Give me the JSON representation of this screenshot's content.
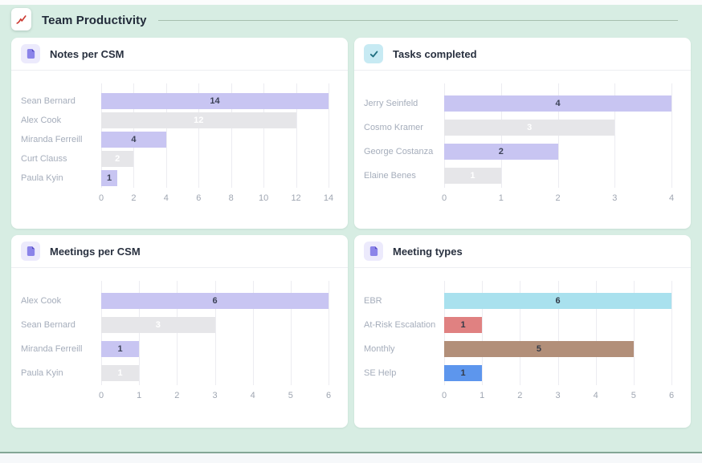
{
  "header": {
    "title": "Team Productivity",
    "icon": "trend-line-icon"
  },
  "colors": {
    "page_background": "#d7ede3",
    "card_background": "#ffffff",
    "purple_bar": "#c8c5f2",
    "gray_bar": "#e6e6e9",
    "cyan_bar": "#a9e1ee",
    "red_bar": "#e08181",
    "brown_bar": "#b28f79",
    "blue_bar": "#5d96ed",
    "dark_value_label": "#3c4257",
    "white_value_label": "#ffffff"
  },
  "chart_data": [
    {
      "type": "bar",
      "orientation": "horizontal",
      "title": "Notes per CSM",
      "card_icon": "note-icon",
      "categories": [
        "Sean Bernard",
        "Alex Cook",
        "Miranda Ferreill",
        "Curt Clauss",
        "Paula Kyin"
      ],
      "values": [
        14,
        12,
        4,
        2,
        1
      ],
      "bar_colors": [
        "#c8c5f2",
        "#e6e6e9",
        "#c8c5f2",
        "#e6e6e9",
        "#c8c5f2"
      ],
      "value_label_colors": [
        "#3c4257",
        "#ffffff",
        "#3c4257",
        "#ffffff",
        "#3c4257"
      ],
      "xticks": [
        0,
        2,
        4,
        6,
        8,
        10,
        12,
        14
      ],
      "xlim": [
        0,
        14
      ],
      "grid": true,
      "legend": false
    },
    {
      "type": "bar",
      "orientation": "horizontal",
      "title": "Tasks completed",
      "card_icon": "check-icon",
      "categories": [
        "Jerry Seinfeld",
        "Cosmo Kramer",
        "George Costanza",
        "Elaine Benes"
      ],
      "values": [
        4,
        3,
        2,
        1
      ],
      "bar_colors": [
        "#c8c5f2",
        "#e6e6e9",
        "#c8c5f2",
        "#e6e6e9"
      ],
      "value_label_colors": [
        "#3c4257",
        "#ffffff",
        "#3c4257",
        "#ffffff"
      ],
      "xticks": [
        0,
        1,
        2,
        3,
        4
      ],
      "xlim": [
        0,
        4
      ],
      "grid": true,
      "legend": false
    },
    {
      "type": "bar",
      "orientation": "horizontal",
      "title": "Meetings per CSM",
      "card_icon": "note-icon",
      "categories": [
        "Alex Cook",
        "Sean Bernard",
        "Miranda Ferreill",
        "Paula Kyin"
      ],
      "values": [
        6,
        3,
        1,
        1
      ],
      "bar_colors": [
        "#c8c5f2",
        "#e6e6e9",
        "#c8c5f2",
        "#e6e6e9"
      ],
      "value_label_colors": [
        "#3c4257",
        "#ffffff",
        "#3c4257",
        "#ffffff"
      ],
      "xticks": [
        0,
        1,
        2,
        3,
        4,
        5,
        6
      ],
      "xlim": [
        0,
        6
      ],
      "grid": true,
      "legend": false
    },
    {
      "type": "bar",
      "orientation": "horizontal",
      "title": "Meeting types",
      "card_icon": "note-icon",
      "categories": [
        "EBR",
        "At-Risk Escalation",
        "Monthly",
        "SE Help"
      ],
      "values": [
        6,
        1,
        5,
        1
      ],
      "bar_colors": [
        "#a9e1ee",
        "#e08181",
        "#b28f79",
        "#5d96ed"
      ],
      "value_label_colors": [
        "#333a47",
        "#333a47",
        "#333a47",
        "#333a47"
      ],
      "xticks": [
        0,
        1,
        2,
        3,
        4,
        5,
        6
      ],
      "xlim": [
        0,
        6
      ],
      "grid": true,
      "legend": false
    }
  ]
}
